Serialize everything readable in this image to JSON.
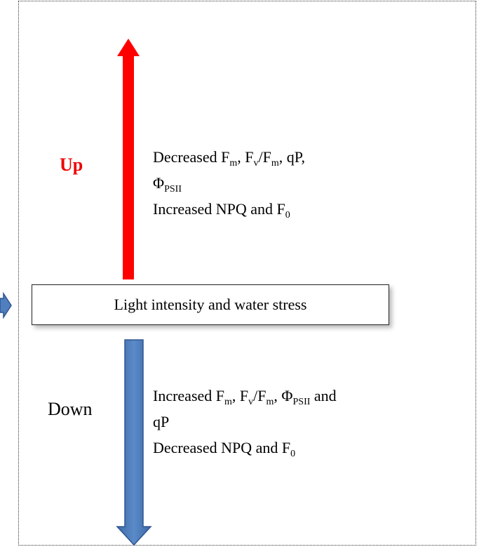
{
  "up": {
    "label": "Up",
    "lines": [
      [
        {
          "text": "Decreased F"
        },
        {
          "sub": "m"
        },
        {
          "text": ", F"
        },
        {
          "sub": "v"
        },
        {
          "text": "/F"
        },
        {
          "sub": "m"
        },
        {
          "text": ", qP,"
        }
      ],
      [
        {
          "text": "Φ"
        },
        {
          "sub": "PSII"
        }
      ],
      [
        {
          "text": "Increased NPQ and F"
        },
        {
          "sub": "0"
        }
      ]
    ]
  },
  "center": "Light intensity and water stress",
  "down": {
    "label": "Down",
    "lines": [
      [
        {
          "text": "Increased F"
        },
        {
          "sub": "m"
        },
        {
          "text": ", F"
        },
        {
          "sub": "v"
        },
        {
          "text": "/F"
        },
        {
          "sub": "m"
        },
        {
          "text": ", Φ"
        },
        {
          "sub": "PSII"
        },
        {
          "text": " and"
        }
      ],
      [
        {
          "text": "qP"
        }
      ],
      [
        {
          "text": "Decreased NPQ and F"
        },
        {
          "sub": "0"
        }
      ]
    ]
  }
}
